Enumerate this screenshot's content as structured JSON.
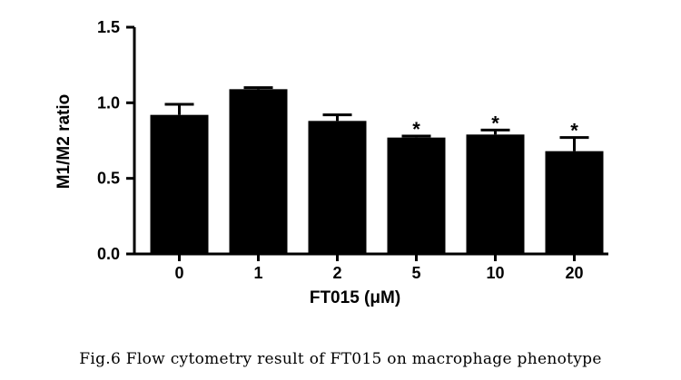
{
  "chart_data": {
    "type": "bar",
    "categories": [
      "0",
      "1",
      "2",
      "5",
      "10",
      "20"
    ],
    "values": [
      0.92,
      1.09,
      0.88,
      0.77,
      0.79,
      0.68
    ],
    "errors": [
      0.07,
      0.01,
      0.04,
      0.01,
      0.03,
      0.09
    ],
    "significance": [
      "",
      "",
      "",
      "*",
      "*",
      "*"
    ],
    "xlabel": "FT015 (μM)",
    "ylabel": "M1/M2 ratio",
    "ylim": [
      0,
      1.5
    ],
    "yticks": [
      "0.0",
      "0.5",
      "1.0",
      "1.5"
    ],
    "bar_color": "#000000",
    "grid": false
  },
  "caption": "Fig.6 Flow cytometry result of FT015 on macrophage phenotype"
}
